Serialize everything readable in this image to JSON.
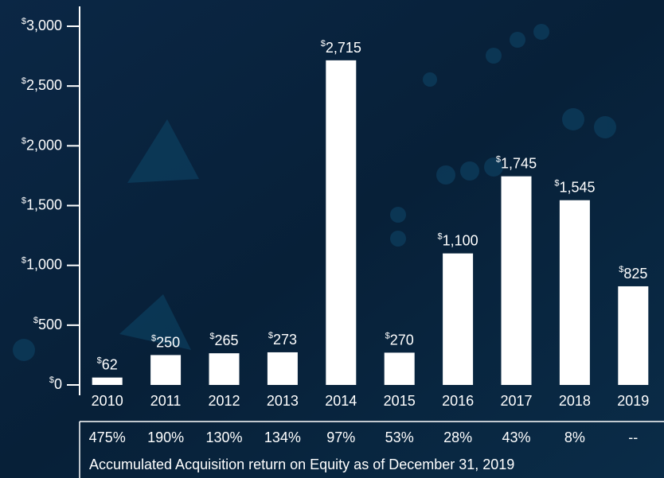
{
  "chart_data": {
    "type": "bar",
    "categories": [
      "2010",
      "2011",
      "2012",
      "2013",
      "2014",
      "2015",
      "2016",
      "2017",
      "2018",
      "2019"
    ],
    "values": [
      62,
      250,
      265,
      273,
      2715,
      270,
      1100,
      1745,
      1545,
      825
    ],
    "value_labels": [
      "$62",
      "$250",
      "$265",
      "$273",
      "$2,715",
      "$270",
      "$1,100",
      "$1,745",
      "$1,545",
      "$825"
    ],
    "color": "#ffffff",
    "ylim": [
      0,
      3000
    ],
    "yticks": [
      {
        "value": 0,
        "label": "$0"
      },
      {
        "value": 500,
        "label": "$500"
      },
      {
        "value": 1000,
        "label": "$1,000"
      },
      {
        "value": 1500,
        "label": "$1,500"
      },
      {
        "value": 2000,
        "label": "$2,000"
      },
      {
        "value": 2500,
        "label": "$2,500"
      },
      {
        "value": 3000,
        "label": "$3,000"
      }
    ],
    "returns": [
      "475%",
      "190%",
      "130%",
      "134%",
      "97%",
      "53%",
      "28%",
      "43%",
      "8%",
      "--"
    ],
    "caption": "Accumulated Acquisition return on Equity as of December 31, 2019"
  }
}
